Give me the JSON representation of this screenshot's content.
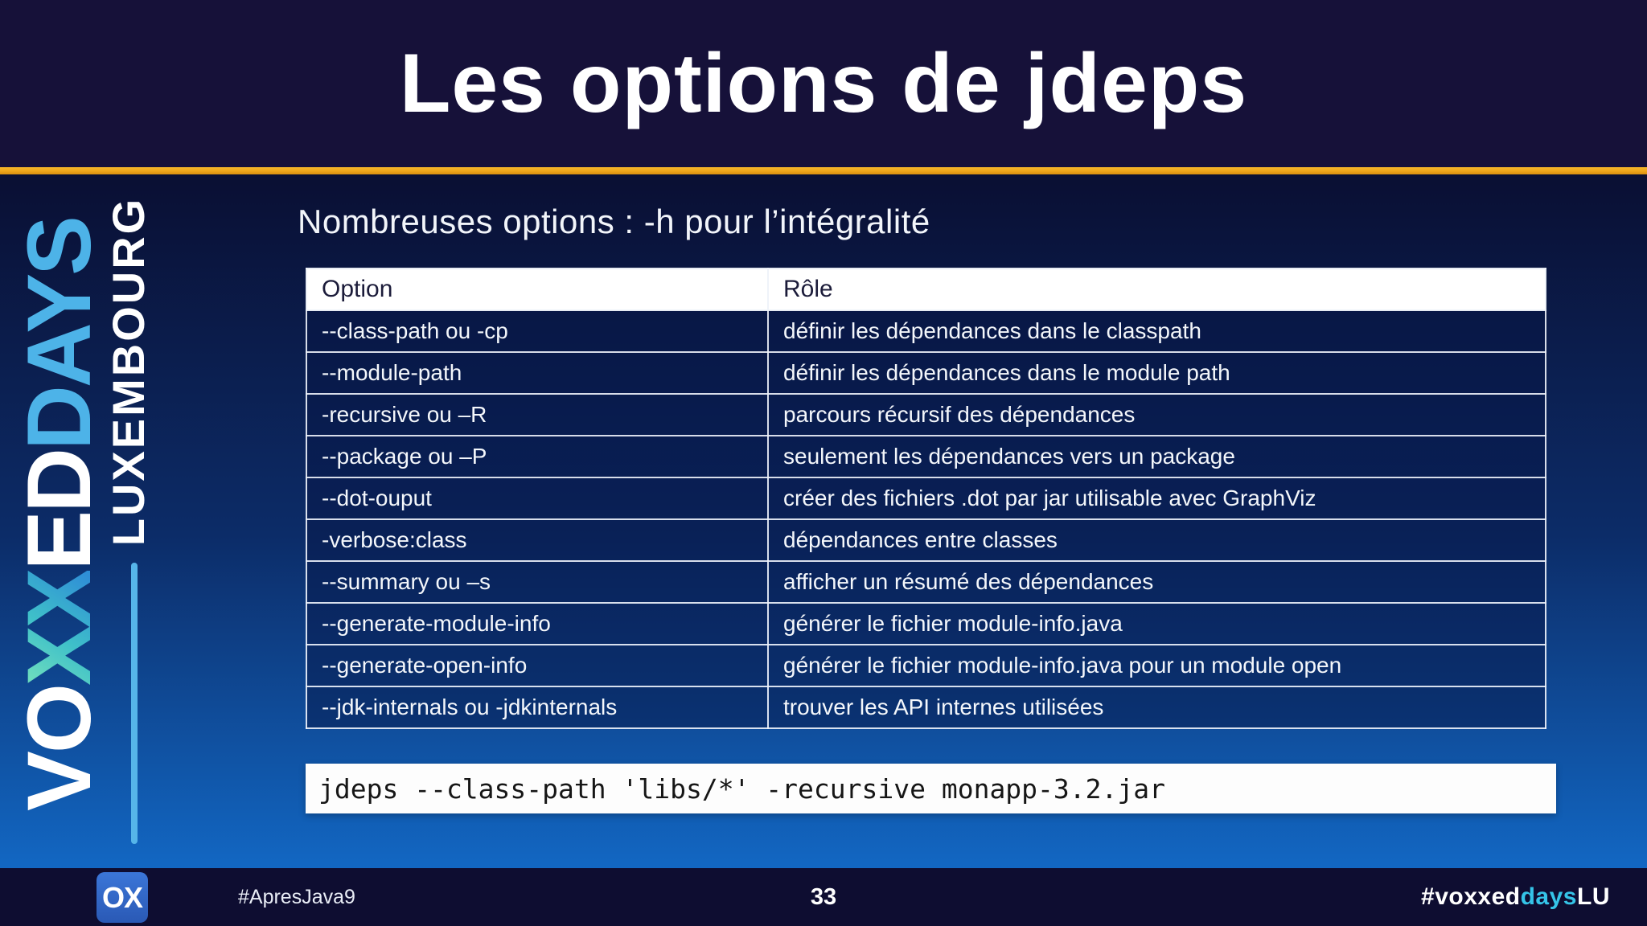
{
  "slide": {
    "title": "Les options de jdeps",
    "subtitle": "Nombreuses options : -h pour l’intégralité"
  },
  "logo": {
    "voxxed_vo": "VO",
    "voxxed_xx": "XX",
    "voxxed_ed": "ED",
    "days": "DAYS",
    "city": "LUXEMBOURG",
    "badge": "OX"
  },
  "table": {
    "headers": {
      "option": "Option",
      "role": "Rôle"
    },
    "rows": [
      {
        "option": "--class-path ou -cp",
        "role": "définir les dépendances dans le classpath"
      },
      {
        "option": "--module-path",
        "role": "définir les dépendances dans le module path"
      },
      {
        "option": "-recursive ou –R",
        "role": "parcours récursif des dépendances"
      },
      {
        "option": "--package ou –P",
        "role": "seulement les dépendances vers un package"
      },
      {
        "option": "--dot-ouput",
        "role": "créer des fichiers .dot par jar utilisable avec GraphViz"
      },
      {
        "option": "-verbose:class",
        "role": "dépendances entre classes"
      },
      {
        "option": "--summary ou –s",
        "role": "afficher un résumé des dépendances"
      },
      {
        "option": "--generate-module-info",
        "role": "générer le fichier module-info.java"
      },
      {
        "option": "--generate-open-info",
        "role": "générer le fichier module-info.java pour un module open"
      },
      {
        "option": "--jdk-internals ou -jdkinternals",
        "role": "trouver les API internes utilisées"
      }
    ]
  },
  "code": {
    "command": "jdeps --class-path 'libs/*' -recursive monapp-3.2.jar"
  },
  "footer": {
    "hashtag_left": "#ApresJava9",
    "page_number": "33",
    "hashtag_right_prefix": "#voxxed",
    "hashtag_right_mid": "days",
    "hashtag_right_suffix": "LU"
  },
  "colors": {
    "accent_gold": "#eea41a",
    "days_blue": "#4db3e8",
    "footer_cyan": "#35c4e8",
    "badge_blue": "#2d63c5",
    "background_top": "#0a0f33",
    "background_bottom": "#1267c3",
    "top_band": "#161139",
    "footer_background": "#0e0d31"
  }
}
